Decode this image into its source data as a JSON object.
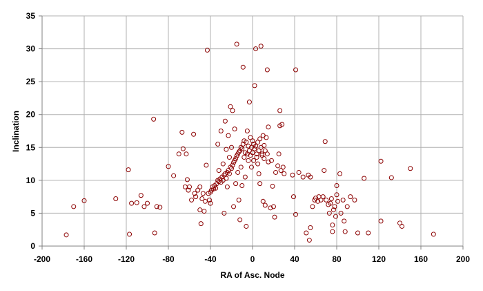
{
  "chart_data": {
    "type": "scatter",
    "xlabel": "RA of Asc. Node",
    "ylabel": "Inclination",
    "xlim": [
      -200,
      200
    ],
    "ylim": [
      0,
      35
    ],
    "x_ticks": [
      "-200",
      "-160",
      "-120",
      "-80",
      "-40",
      "0",
      "40",
      "80",
      "120",
      "160",
      "200"
    ],
    "y_ticks": [
      "0",
      "5",
      "10",
      "15",
      "20",
      "25",
      "30",
      "35"
    ],
    "grid": true,
    "legend": "none",
    "marker": "open-circle",
    "marker_color": "#8b0000",
    "points": [
      [
        -177,
        1.7
      ],
      [
        -170,
        6.0
      ],
      [
        -160,
        6.9
      ],
      [
        -130,
        7.2
      ],
      [
        -118,
        11.6
      ],
      [
        -117,
        1.8
      ],
      [
        -115,
        6.5
      ],
      [
        -110,
        6.6
      ],
      [
        -106,
        7.7
      ],
      [
        -103,
        6.0
      ],
      [
        -100,
        6.5
      ],
      [
        -94,
        19.3
      ],
      [
        -93,
        2.0
      ],
      [
        -91,
        6.0
      ],
      [
        -88,
        5.9
      ],
      [
        -80,
        12.1
      ],
      [
        -75,
        10.7
      ],
      [
        -70,
        14.0
      ],
      [
        -67,
        17.3
      ],
      [
        -66,
        14.8
      ],
      [
        -64,
        9.0
      ],
      [
        -63,
        14.0
      ],
      [
        -62,
        10.1
      ],
      [
        -61,
        8.5
      ],
      [
        -60,
        9.0
      ],
      [
        -58,
        7.0
      ],
      [
        -56,
        17.0
      ],
      [
        -55,
        8.0
      ],
      [
        -54,
        7.5
      ],
      [
        -52,
        8.5
      ],
      [
        -50,
        9.0
      ],
      [
        -50,
        5.5
      ],
      [
        -49,
        3.4
      ],
      [
        -48,
        7.2
      ],
      [
        -47,
        8.0
      ],
      [
        -46,
        5.3
      ],
      [
        -45,
        6.8
      ],
      [
        -44,
        12.3
      ],
      [
        -43,
        29.8
      ],
      [
        -42,
        8.0
      ],
      [
        -41,
        7.0
      ],
      [
        -40,
        8.2
      ],
      [
        -40,
        6.5
      ],
      [
        -39,
        8.5
      ],
      [
        -38,
        9.0
      ],
      [
        -37,
        8.7
      ],
      [
        -36,
        9.2
      ],
      [
        -35,
        8.8
      ],
      [
        -34,
        9.5
      ],
      [
        -33,
        10.0
      ],
      [
        -33,
        15.5
      ],
      [
        -32,
        9.8
      ],
      [
        -32,
        11.5
      ],
      [
        -31,
        10.2
      ],
      [
        -30,
        9.7
      ],
      [
        -30,
        17.5
      ],
      [
        -29,
        10.5
      ],
      [
        -28,
        10.0
      ],
      [
        -28,
        12.5
      ],
      [
        -27,
        10.8
      ],
      [
        -27,
        5.0
      ],
      [
        -26,
        11.0
      ],
      [
        -26,
        19.0
      ],
      [
        -25,
        10.3
      ],
      [
        -25,
        14.7
      ],
      [
        -24,
        11.2
      ],
      [
        -24,
        9.0
      ],
      [
        -23,
        11.5
      ],
      [
        -23,
        16.8
      ],
      [
        -22,
        11.0
      ],
      [
        -22,
        13.5
      ],
      [
        -21,
        12.0
      ],
      [
        -21,
        21.2
      ],
      [
        -20,
        11.8
      ],
      [
        -20,
        15.0
      ],
      [
        -19,
        12.3
      ],
      [
        -19,
        20.6
      ],
      [
        -18,
        12.7
      ],
      [
        -18,
        6.0
      ],
      [
        -17,
        13.0
      ],
      [
        -17,
        17.8
      ],
      [
        -16,
        13.3
      ],
      [
        -16,
        9.5
      ],
      [
        -15,
        30.7
      ],
      [
        -15,
        13.7
      ],
      [
        -14,
        14.0
      ],
      [
        -14,
        11.2
      ],
      [
        -13,
        14.3
      ],
      [
        -13,
        7.0
      ],
      [
        -12,
        4.0
      ],
      [
        -12,
        14.5
      ],
      [
        -11,
        12.0
      ],
      [
        -11,
        15.0
      ],
      [
        -10,
        9.2
      ],
      [
        -10,
        14.8
      ],
      [
        -9,
        27.2
      ],
      [
        -9,
        15.5
      ],
      [
        -8,
        13.5
      ],
      [
        -8,
        16.0
      ],
      [
        -7,
        14.2
      ],
      [
        -7,
        10.5
      ],
      [
        -6,
        15.8
      ],
      [
        -6,
        3.0
      ],
      [
        -5,
        14.0
      ],
      [
        -5,
        17.5
      ],
      [
        -4,
        13.0
      ],
      [
        -4,
        15.2
      ],
      [
        -3,
        21.9
      ],
      [
        -3,
        14.5
      ],
      [
        -2,
        13.8
      ],
      [
        -2,
        16.5
      ],
      [
        -1,
        15.0
      ],
      [
        -1,
        12.0
      ],
      [
        0,
        14.2
      ],
      [
        0,
        16.0
      ],
      [
        1,
        15.5
      ],
      [
        1,
        13.0
      ],
      [
        2,
        24.4
      ],
      [
        2,
        14.8
      ],
      [
        3,
        30.0
      ],
      [
        3,
        15.2
      ],
      [
        4,
        13.5
      ],
      [
        4,
        14.0
      ],
      [
        5,
        15.8
      ],
      [
        5,
        12.5
      ],
      [
        6,
        14.5
      ],
      [
        6,
        11.0
      ],
      [
        7,
        16.3
      ],
      [
        7,
        9.5
      ],
      [
        8,
        30.4
      ],
      [
        8,
        15.0
      ],
      [
        9,
        14.0
      ],
      [
        9,
        13.8
      ],
      [
        10,
        16.8
      ],
      [
        10,
        6.8
      ],
      [
        11,
        15.3
      ],
      [
        11,
        13.3
      ],
      [
        12,
        14.5
      ],
      [
        12,
        6.2
      ],
      [
        13,
        16.5
      ],
      [
        14,
        26.8
      ],
      [
        14,
        14.0
      ],
      [
        15,
        18.1
      ],
      [
        15,
        12.8
      ],
      [
        17,
        5.8
      ],
      [
        18,
        13.0
      ],
      [
        19,
        9.1
      ],
      [
        20,
        6.0
      ],
      [
        21,
        4.4
      ],
      [
        22,
        11.2
      ],
      [
        24,
        12.2
      ],
      [
        25,
        14.0
      ],
      [
        26,
        18.3
      ],
      [
        26,
        20.6
      ],
      [
        27,
        11.5
      ],
      [
        28,
        18.5
      ],
      [
        29,
        12.0
      ],
      [
        30,
        11.0
      ],
      [
        38,
        10.8
      ],
      [
        39,
        7.5
      ],
      [
        41,
        26.8
      ],
      [
        41,
        4.8
      ],
      [
        44,
        11.2
      ],
      [
        48,
        10.5
      ],
      [
        51,
        2.0
      ],
      [
        53,
        10.8
      ],
      [
        54,
        0.9
      ],
      [
        55,
        10.5
      ],
      [
        55,
        2.8
      ],
      [
        57,
        6.0
      ],
      [
        59,
        7.0
      ],
      [
        60,
        7.3
      ],
      [
        62,
        6.8
      ],
      [
        63,
        7.5
      ],
      [
        65,
        7.0
      ],
      [
        67,
        7.5
      ],
      [
        68,
        11.5
      ],
      [
        69,
        15.9
      ],
      [
        70,
        7.0
      ],
      [
        72,
        6.3
      ],
      [
        73,
        5.0
      ],
      [
        74,
        6.5
      ],
      [
        75,
        7.2
      ],
      [
        76,
        2.2
      ],
      [
        76,
        3.2
      ],
      [
        77,
        5.5
      ],
      [
        78,
        6.0
      ],
      [
        79,
        4.5
      ],
      [
        80,
        9.2
      ],
      [
        80,
        7.8
      ],
      [
        81,
        6.8
      ],
      [
        83,
        11.0
      ],
      [
        84,
        5.0
      ],
      [
        86,
        7.0
      ],
      [
        87,
        3.8
      ],
      [
        88,
        2.2
      ],
      [
        90,
        6.0
      ],
      [
        93,
        7.5
      ],
      [
        97,
        7.0
      ],
      [
        100,
        2.0
      ],
      [
        106,
        10.3
      ],
      [
        110,
        2.0
      ],
      [
        122,
        12.9
      ],
      [
        122,
        3.8
      ],
      [
        132,
        10.4
      ],
      [
        140,
        3.5
      ],
      [
        142,
        3.0
      ],
      [
        150,
        11.8
      ],
      [
        172,
        1.8
      ]
    ]
  }
}
